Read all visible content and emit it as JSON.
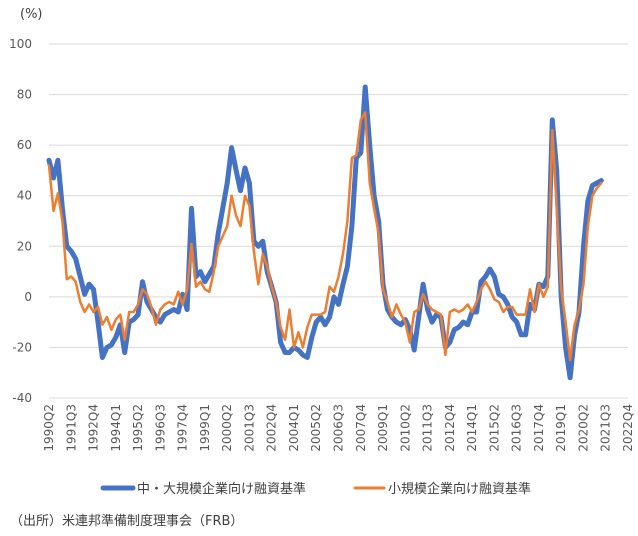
{
  "chart_data": {
    "type": "line",
    "unit_label": "(%)",
    "ylim": [
      -40,
      100
    ],
    "yticks": [
      -40,
      -20,
      0,
      20,
      40,
      60,
      80,
      100
    ],
    "grid": true,
    "legend_position": "bottom",
    "x_start": "1990Q2",
    "x_end": "2022Q4",
    "xtick_labels": [
      "1990Q2",
      "1991Q3",
      "1992Q4",
      "1994Q1",
      "1995Q2",
      "1996Q3",
      "1997Q4",
      "1999Q1",
      "2000Q2",
      "2001Q3",
      "2002Q4",
      "2004Q1",
      "2005Q2",
      "2006Q3",
      "2007Q4",
      "2009Q1",
      "2010Q2",
      "2011Q3",
      "2012Q4",
      "2014Q1",
      "2015Q2",
      "2016Q3",
      "2017Q4",
      "2019Q1",
      "2020Q2",
      "2021Q3",
      "2022Q4"
    ],
    "series": [
      {
        "name": "中・大規模企業向け融資基準",
        "color": "#4472C4",
        "points": [
          [
            "1990Q2",
            54
          ],
          [
            "1990Q3",
            47
          ],
          [
            "1990Q4",
            54
          ],
          [
            "1991Q1",
            35
          ],
          [
            "1991Q2",
            20
          ],
          [
            "1991Q3",
            18
          ],
          [
            "1991Q4",
            15
          ],
          [
            "1992Q1",
            8
          ],
          [
            "1992Q2",
            1
          ],
          [
            "1992Q3",
            5
          ],
          [
            "1992Q4",
            3
          ],
          [
            "1993Q1",
            -10
          ],
          [
            "1993Q2",
            -24
          ],
          [
            "1993Q3",
            -20
          ],
          [
            "1993Q4",
            -19
          ],
          [
            "1994Q1",
            -16
          ],
          [
            "1994Q2",
            -11
          ],
          [
            "1994Q3",
            -22
          ],
          [
            "1994Q4",
            -10
          ],
          [
            "1995Q1",
            -9
          ],
          [
            "1995Q2",
            -7
          ],
          [
            "1995Q3",
            6
          ],
          [
            "1995Q4",
            -2
          ],
          [
            "1996Q1",
            -5
          ],
          [
            "1996Q2",
            -8
          ],
          [
            "1996Q3",
            -10
          ],
          [
            "1996Q4",
            -7
          ],
          [
            "1997Q1",
            -6
          ],
          [
            "1997Q2",
            -5
          ],
          [
            "1997Q3",
            -6
          ],
          [
            "1997Q4",
            1
          ],
          [
            "1998Q1",
            -5
          ],
          [
            "1998Q2",
            35
          ],
          [
            "1998Q3",
            8
          ],
          [
            "1998Q4",
            10
          ],
          [
            "1999Q1",
            6
          ],
          [
            "1999Q2",
            9
          ],
          [
            "1999Q3",
            12
          ],
          [
            "1999Q4",
            25
          ],
          [
            "2000Q1",
            35
          ],
          [
            "2000Q2",
            45
          ],
          [
            "2000Q3",
            59
          ],
          [
            "2000Q4",
            50
          ],
          [
            "2001Q1",
            42
          ],
          [
            "2001Q2",
            51
          ],
          [
            "2001Q3",
            45
          ],
          [
            "2001Q4",
            22
          ],
          [
            "2002Q1",
            20
          ],
          [
            "2002Q2",
            22
          ],
          [
            "2002Q3",
            10
          ],
          [
            "2002Q4",
            4
          ],
          [
            "2003Q1",
            -2
          ],
          [
            "2003Q2",
            -18
          ],
          [
            "2003Q3",
            -22
          ],
          [
            "2003Q4",
            -22
          ],
          [
            "2004Q1",
            -20
          ],
          [
            "2004Q2",
            -21
          ],
          [
            "2004Q3",
            -23
          ],
          [
            "2004Q4",
            -24
          ],
          [
            "2005Q1",
            -16
          ],
          [
            "2005Q2",
            -10
          ],
          [
            "2005Q3",
            -8
          ],
          [
            "2005Q4",
            -11
          ],
          [
            "2006Q1",
            -8
          ],
          [
            "2006Q2",
            0
          ],
          [
            "2006Q3",
            -3
          ],
          [
            "2006Q4",
            5
          ],
          [
            "2007Q1",
            12
          ],
          [
            "2007Q2",
            28
          ],
          [
            "2007Q3",
            55
          ],
          [
            "2007Q4",
            57
          ],
          [
            "2008Q1",
            83
          ],
          [
            "2008Q2",
            60
          ],
          [
            "2008Q3",
            40
          ],
          [
            "2008Q4",
            30
          ],
          [
            "2009Q1",
            5
          ],
          [
            "2009Q2",
            -5
          ],
          [
            "2009Q3",
            -8
          ],
          [
            "2009Q4",
            -10
          ],
          [
            "2010Q1",
            -11
          ],
          [
            "2010Q2",
            -9
          ],
          [
            "2010Q3",
            -13
          ],
          [
            "2010Q4",
            -21
          ],
          [
            "2011Q1",
            -8
          ],
          [
            "2011Q2",
            5
          ],
          [
            "2011Q3",
            -5
          ],
          [
            "2011Q4",
            -10
          ],
          [
            "2012Q1",
            -7
          ],
          [
            "2012Q2",
            -8
          ],
          [
            "2012Q3",
            -20
          ],
          [
            "2012Q4",
            -18
          ],
          [
            "2013Q1",
            -13
          ],
          [
            "2013Q2",
            -12
          ],
          [
            "2013Q3",
            -10
          ],
          [
            "2013Q4",
            -11
          ],
          [
            "2014Q1",
            -6
          ],
          [
            "2014Q2",
            -6
          ],
          [
            "2014Q3",
            6
          ],
          [
            "2014Q4",
            8
          ],
          [
            "2015Q1",
            11
          ],
          [
            "2015Q2",
            8
          ],
          [
            "2015Q3",
            1
          ],
          [
            "2015Q4",
            0
          ],
          [
            "2016Q1",
            -3
          ],
          [
            "2016Q2",
            -8
          ],
          [
            "2016Q3",
            -10
          ],
          [
            "2016Q4",
            -15
          ],
          [
            "2017Q1",
            -15
          ],
          [
            "2017Q2",
            -3
          ],
          [
            "2017Q3",
            -5
          ],
          [
            "2017Q4",
            5
          ],
          [
            "2018Q1",
            4
          ],
          [
            "2018Q2",
            8
          ],
          [
            "2018Q3",
            70
          ],
          [
            "2018Q4",
            50
          ],
          [
            "2019Q1",
            0
          ],
          [
            "2019Q2",
            -20
          ],
          [
            "2019Q3",
            -32
          ],
          [
            "2019Q4",
            -15
          ],
          [
            "2020Q1",
            -6
          ],
          [
            "2020Q2",
            20
          ],
          [
            "2020Q3",
            38
          ],
          [
            "2020Q4",
            44
          ],
          [
            "2021Q1",
            45
          ],
          [
            "2021Q2",
            46
          ]
        ]
      },
      {
        "name": "小規模企業向け融資基準",
        "color": "#ED7D31",
        "points": [
          [
            "1990Q2",
            52
          ],
          [
            "1990Q3",
            34
          ],
          [
            "1990Q4",
            41
          ],
          [
            "1991Q1",
            30
          ],
          [
            "1991Q2",
            7
          ],
          [
            "1991Q3",
            8
          ],
          [
            "1991Q4",
            6
          ],
          [
            "1992Q1",
            -2
          ],
          [
            "1992Q2",
            -6
          ],
          [
            "1992Q3",
            -3
          ],
          [
            "1992Q4",
            -6
          ],
          [
            "1993Q1",
            -4
          ],
          [
            "1993Q2",
            -11
          ],
          [
            "1993Q3",
            -8
          ],
          [
            "1993Q4",
            -13
          ],
          [
            "1994Q1",
            -9
          ],
          [
            "1994Q2",
            -7
          ],
          [
            "1994Q3",
            -17
          ],
          [
            "1994Q4",
            -6
          ],
          [
            "1995Q1",
            -6
          ],
          [
            "1995Q2",
            -3
          ],
          [
            "1995Q3",
            3
          ],
          [
            "1995Q4",
            1
          ],
          [
            "1996Q1",
            -4
          ],
          [
            "1996Q2",
            -11
          ],
          [
            "1996Q3",
            -5
          ],
          [
            "1996Q4",
            -3
          ],
          [
            "1997Q1",
            -2
          ],
          [
            "1997Q2",
            -3
          ],
          [
            "1997Q3",
            2
          ],
          [
            "1997Q4",
            -3
          ],
          [
            "1998Q1",
            3
          ],
          [
            "1998Q2",
            21
          ],
          [
            "1998Q3",
            4
          ],
          [
            "1998Q4",
            6
          ],
          [
            "1999Q1",
            3
          ],
          [
            "1999Q2",
            2
          ],
          [
            "1999Q3",
            10
          ],
          [
            "1999Q4",
            20
          ],
          [
            "2000Q1",
            24
          ],
          [
            "2000Q2",
            28
          ],
          [
            "2000Q3",
            40
          ],
          [
            "2000Q4",
            32
          ],
          [
            "2001Q1",
            28
          ],
          [
            "2001Q2",
            40
          ],
          [
            "2001Q3",
            36
          ],
          [
            "2001Q4",
            18
          ],
          [
            "2002Q1",
            5
          ],
          [
            "2002Q2",
            17
          ],
          [
            "2002Q3",
            12
          ],
          [
            "2002Q4",
            4
          ],
          [
            "2003Q1",
            -2
          ],
          [
            "2003Q2",
            -12
          ],
          [
            "2003Q3",
            -17
          ],
          [
            "2003Q4",
            -5
          ],
          [
            "2004Q1",
            -20
          ],
          [
            "2004Q2",
            -14
          ],
          [
            "2004Q3",
            -20
          ],
          [
            "2004Q4",
            -12
          ],
          [
            "2005Q1",
            -7
          ],
          [
            "2005Q2",
            -7
          ],
          [
            "2005Q3",
            -7
          ],
          [
            "2005Q4",
            -6
          ],
          [
            "2006Q1",
            4
          ],
          [
            "2006Q2",
            2
          ],
          [
            "2006Q3",
            8
          ],
          [
            "2006Q4",
            17
          ],
          [
            "2007Q1",
            30
          ],
          [
            "2007Q2",
            55
          ],
          [
            "2007Q3",
            56
          ],
          [
            "2007Q4",
            70
          ],
          [
            "2008Q1",
            73
          ],
          [
            "2008Q2",
            45
          ],
          [
            "2008Q3",
            35
          ],
          [
            "2008Q4",
            25
          ],
          [
            "2009Q1",
            3
          ],
          [
            "2009Q2",
            -2
          ],
          [
            "2009Q3",
            -8
          ],
          [
            "2009Q4",
            -3
          ],
          [
            "2010Q1",
            -7
          ],
          [
            "2010Q2",
            -10
          ],
          [
            "2010Q3",
            -18
          ],
          [
            "2010Q4",
            -6
          ],
          [
            "2011Q1",
            -5
          ],
          [
            "2011Q2",
            1
          ],
          [
            "2011Q3",
            -3
          ],
          [
            "2011Q4",
            -5
          ],
          [
            "2012Q1",
            -6
          ],
          [
            "2012Q2",
            -7
          ],
          [
            "2012Q3",
            -23
          ],
          [
            "2012Q4",
            -6
          ],
          [
            "2013Q1",
            -5
          ],
          [
            "2013Q2",
            -6
          ],
          [
            "2013Q3",
            -5
          ],
          [
            "2013Q4",
            -3
          ],
          [
            "2014Q1",
            -6
          ],
          [
            "2014Q2",
            -2
          ],
          [
            "2014Q3",
            3
          ],
          [
            "2014Q4",
            6
          ],
          [
            "2015Q1",
            3
          ],
          [
            "2015Q2",
            -1
          ],
          [
            "2015Q3",
            -2
          ],
          [
            "2015Q4",
            -6
          ],
          [
            "2016Q1",
            -4
          ],
          [
            "2016Q2",
            -4
          ],
          [
            "2016Q3",
            -7
          ],
          [
            "2016Q4",
            -7
          ],
          [
            "2017Q1",
            -7
          ],
          [
            "2017Q2",
            3
          ],
          [
            "2017Q3",
            -6
          ],
          [
            "2017Q4",
            5
          ],
          [
            "2018Q1",
            0
          ],
          [
            "2018Q2",
            4
          ],
          [
            "2018Q3",
            66
          ],
          [
            "2018Q4",
            35
          ],
          [
            "2019Q1",
            3
          ],
          [
            "2019Q2",
            -10
          ],
          [
            "2019Q3",
            -25
          ],
          [
            "2019Q4",
            -11
          ],
          [
            "2020Q1",
            -5
          ],
          [
            "2020Q2",
            5
          ],
          [
            "2020Q3",
            28
          ],
          [
            "2020Q4",
            40
          ],
          [
            "2021Q1",
            43
          ],
          [
            "2021Q2",
            45
          ]
        ]
      }
    ]
  },
  "source_note": "（出所）米連邦準備制度理事会（FRB）"
}
